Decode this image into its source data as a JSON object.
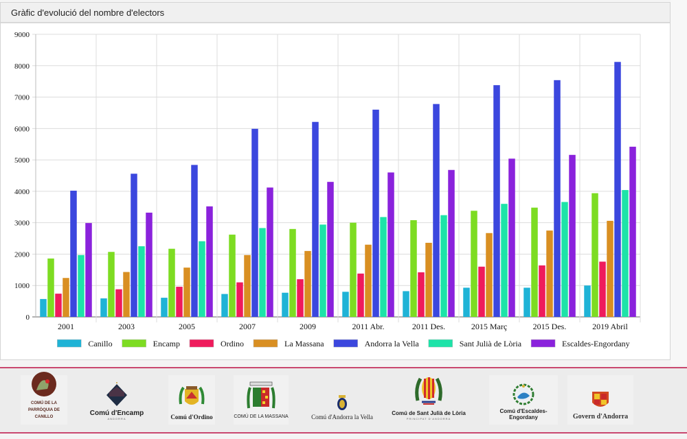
{
  "panel": {
    "title": "Gràfic d'evolució del nombre d'electors"
  },
  "chart_data": {
    "type": "bar",
    "title": "Gràfic d'evolució del nombre d'electors",
    "xlabel": "",
    "ylabel": "",
    "ylim": [
      0,
      9000
    ],
    "yticks": [
      0,
      1000,
      2000,
      3000,
      4000,
      5000,
      6000,
      7000,
      8000,
      9000
    ],
    "grid": true,
    "legend_position": "bottom",
    "categories": [
      "2001",
      "2003",
      "2005",
      "2007",
      "2009",
      "2011 Abr.",
      "2011 Des.",
      "2015 Març",
      "2015 Des.",
      "2019 Abril"
    ],
    "series": [
      {
        "name": "Canillo",
        "color": "#1fb3d6",
        "values": [
          570,
          590,
          610,
          730,
          770,
          800,
          820,
          930,
          930,
          1000
        ]
      },
      {
        "name": "Encamp",
        "color": "#7ddc22",
        "values": [
          1860,
          2070,
          2170,
          2620,
          2800,
          3000,
          3080,
          3380,
          3480,
          3940
        ]
      },
      {
        "name": "Ordino",
        "color": "#ef1b5c",
        "values": [
          740,
          880,
          960,
          1100,
          1200,
          1380,
          1420,
          1600,
          1640,
          1760
        ]
      },
      {
        "name": "La Massana",
        "color": "#d98f22",
        "values": [
          1240,
          1430,
          1570,
          1970,
          2100,
          2300,
          2360,
          2670,
          2750,
          3060
        ]
      },
      {
        "name": "Andorra la Vella",
        "color": "#3b47de",
        "values": [
          4020,
          4560,
          4840,
          5990,
          6210,
          6600,
          6780,
          7380,
          7540,
          8120
        ]
      },
      {
        "name": "Sant Julià de Lòria",
        "color": "#1de3a8",
        "values": [
          1970,
          2250,
          2410,
          2830,
          2940,
          3180,
          3240,
          3600,
          3660,
          4040
        ]
      },
      {
        "name": "Escaldes-Engordany",
        "color": "#8a22dc",
        "values": [
          2990,
          3320,
          3520,
          4120,
          4300,
          4600,
          4680,
          5040,
          5160,
          5420
        ]
      }
    ]
  },
  "logos": [
    {
      "name": "COMÚ DE LA PARRÒQUIA DE CANILLO",
      "style": "tiny"
    },
    {
      "name": "Comú d'Encamp",
      "sub": "ANDORRA",
      "style": "sans"
    },
    {
      "name": "Comú d'Ordino",
      "style": "serif-bold"
    },
    {
      "name": "COMÚ DE LA MASSANA",
      "style": "sans"
    },
    {
      "name": "Comú d'Andorra la Vella",
      "style": "serif"
    },
    {
      "name": "Comú de Sant Julià de Lòria",
      "sub": "PRINCIPAT D'ANDORRA",
      "style": "sans"
    },
    {
      "name": "Comú d'Escaldes-Engordany",
      "style": "sans"
    },
    {
      "name": "Govern d'Andorra",
      "style": "serif"
    }
  ]
}
